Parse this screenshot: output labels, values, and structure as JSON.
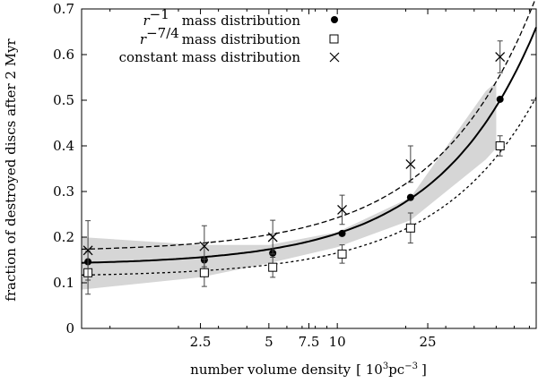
{
  "chart_data": {
    "type": "scatter",
    "xlabel_prefix": "number volume density",
    "xlabel_unit": "[ 10",
    "xlabel_unit_exp": "3",
    "xlabel_unit_mid": "pc",
    "xlabel_unit_exp2": "−3",
    "xlabel_unit_end": "]",
    "ylabel": "fraction of destroyed discs after 2 Myr",
    "x_scale": "log",
    "xlim": [
      0.75,
      75
    ],
    "ylim": [
      0,
      0.7
    ],
    "x_ticks": [
      {
        "value": 2.5,
        "label": "2.5"
      },
      {
        "value": 5,
        "label": "5"
      },
      {
        "value": 7.5,
        "label": "7.5"
      },
      {
        "value": 10,
        "label": "10"
      },
      {
        "value": 25,
        "label": "25"
      }
    ],
    "y_ticks": [
      {
        "value": 0,
        "label": "0"
      },
      {
        "value": 0.1,
        "label": "0.1"
      },
      {
        "value": 0.2,
        "label": "0.2"
      },
      {
        "value": 0.3,
        "label": "0.3"
      },
      {
        "value": 0.4,
        "label": "0.4"
      },
      {
        "value": 0.5,
        "label": "0.5"
      },
      {
        "value": 0.6,
        "label": "0.6"
      },
      {
        "value": 0.7,
        "label": "0.7"
      }
    ],
    "series": [
      {
        "name": "r^-1 mass distribution",
        "legend_math": "r",
        "legend_exp": "−1",
        "legend_text": "mass distribution",
        "marker": "filled-circle",
        "x": [
          0.8,
          2.6,
          5.2,
          10.5,
          21,
          52
        ],
        "y": [
          0.146,
          0.15,
          0.165,
          0.208,
          0.287,
          0.502
        ],
        "err": [
          0,
          0,
          0,
          0,
          0,
          0
        ]
      },
      {
        "name": "r^-7/4 mass distribution",
        "legend_math": "r",
        "legend_exp": "−7/4",
        "legend_text": "mass distribution",
        "marker": "open-square",
        "x": [
          0.8,
          2.6,
          5.2,
          10.5,
          21,
          52
        ],
        "y": [
          0.122,
          0.122,
          0.134,
          0.163,
          0.22,
          0.4
        ],
        "err": [
          0.047,
          0.03,
          0.022,
          0.02,
          0.033,
          0.022
        ]
      },
      {
        "name": "constant mass distribution",
        "legend_math": "",
        "legend_exp": "",
        "legend_text": "constant mass distribution",
        "marker": "cross",
        "x": [
          0.8,
          2.6,
          5.2,
          10.5,
          21,
          52
        ],
        "y": [
          0.171,
          0.18,
          0.2,
          0.26,
          0.36,
          0.595
        ],
        "err": [
          0.065,
          0.045,
          0.037,
          0.032,
          0.04,
          0.035
        ]
      }
    ],
    "fits": [
      {
        "name": "fit r^-1",
        "style": "solid",
        "a": 0.1385,
        "b": 0.00695
      },
      {
        "name": "fit constant",
        "style": "dashed",
        "a": 0.168,
        "b": 0.00745
      },
      {
        "name": "fit r^-7/4",
        "style": "dotted",
        "a": 0.113,
        "b": 0.00525
      }
    ],
    "band": {
      "name": "shaded uncertainty band",
      "x": [
        0.75,
        2.5,
        5,
        10,
        21,
        45,
        50
      ],
      "upper": [
        0.2,
        0.183,
        0.183,
        0.211,
        0.287,
        0.52,
        0.54
      ],
      "lower": [
        0.085,
        0.112,
        0.143,
        0.178,
        0.237,
        0.37,
        0.395
      ]
    },
    "legend_position": "top-right"
  }
}
